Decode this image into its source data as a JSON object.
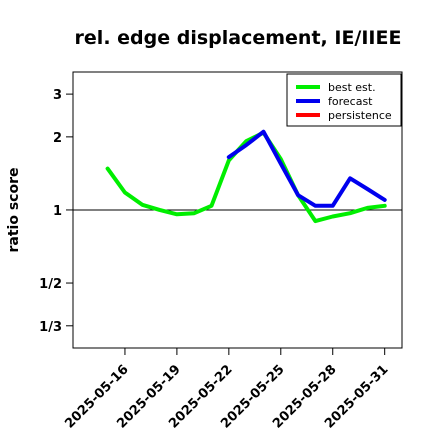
{
  "chart_data": {
    "type": "line",
    "title": "rel. edge displacement, IE/IIEE",
    "ylabel": "ratio score",
    "xlabel": "",
    "scale": "log",
    "ylim": [
      0.27,
      3.7
    ],
    "xlim": [
      "2025-05-13",
      "2025-06-01"
    ],
    "reference_line": 1,
    "ytick_values": [
      0.3333,
      0.5,
      1,
      2,
      3
    ],
    "ytick_labels": [
      "1/3",
      "1/2",
      "1",
      "2",
      "3"
    ],
    "xtick_values": [
      "2025-05-16",
      "2025-05-19",
      "2025-05-22",
      "2025-05-25",
      "2025-05-28",
      "2025-05-31"
    ],
    "xtick_labels": [
      "2025-05-16",
      "2025-05-19",
      "2025-05-22",
      "2025-05-25",
      "2025-05-28",
      "2025-05-31"
    ],
    "xtick_colors": [
      "#000000",
      "#000000",
      "#228B22",
      "#000000",
      "#000000",
      "#000000"
    ],
    "legend_position": "top-right",
    "series": [
      {
        "name": "best est.",
        "color": "#00ee00",
        "x": [
          "2025-05-15",
          "2025-05-16",
          "2025-05-17",
          "2025-05-18",
          "2025-05-19",
          "2025-05-20",
          "2025-05-21",
          "2025-05-22",
          "2025-05-23",
          "2025-05-24",
          "2025-05-25",
          "2025-05-26",
          "2025-05-27",
          "2025-05-28",
          "2025-05-29",
          "2025-05-30",
          "2025-05-31"
        ],
        "values": [
          1.48,
          1.18,
          1.05,
          1.0,
          0.96,
          0.97,
          1.04,
          1.6,
          1.92,
          2.08,
          1.62,
          1.15,
          0.9,
          0.94,
          0.97,
          1.02,
          1.04
        ]
      },
      {
        "name": "forecast",
        "color": "#0000ee",
        "x": [
          "2025-05-22",
          "2025-05-23",
          "2025-05-24",
          "2025-05-25",
          "2025-05-26",
          "2025-05-27",
          "2025-05-28",
          "2025-05-29",
          "2025-05-30",
          "2025-05-31"
        ],
        "values": [
          1.65,
          1.85,
          2.1,
          1.55,
          1.15,
          1.04,
          1.04,
          1.35,
          1.22,
          1.1
        ]
      },
      {
        "name": "persistence",
        "color": "#ff0000",
        "x": [],
        "values": []
      }
    ]
  }
}
